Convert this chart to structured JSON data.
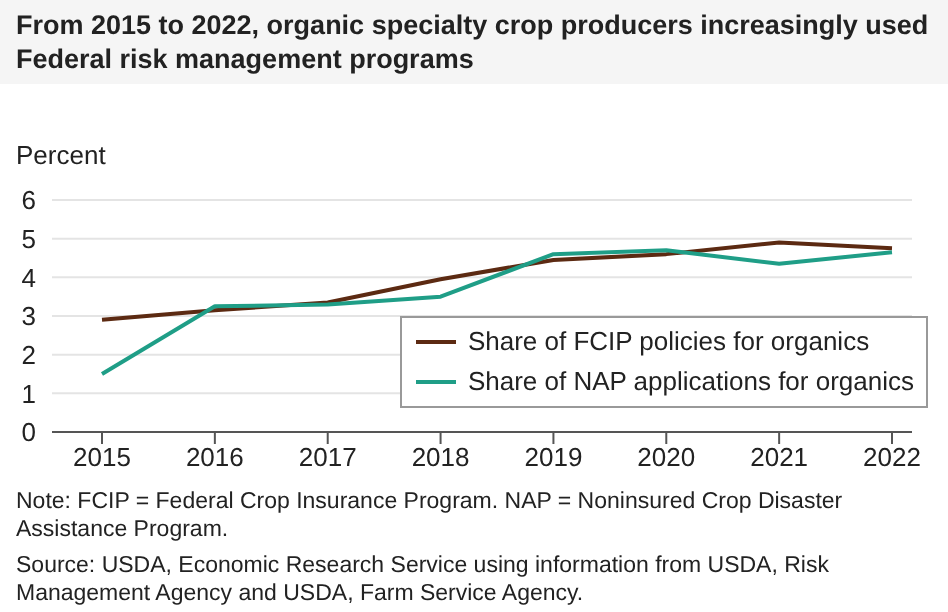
{
  "chart_data": {
    "type": "line",
    "title": "From 2015 to 2022, organic specialty crop producers increasingly used Federal risk management programs",
    "ylabel": "Percent",
    "categories": [
      "2015",
      "2016",
      "2017",
      "2018",
      "2019",
      "2020",
      "2021",
      "2022"
    ],
    "series": [
      {
        "name": "Share of FCIP policies for organics",
        "color": "#5c2a12",
        "values": [
          2.9,
          3.15,
          3.35,
          3.95,
          4.45,
          4.6,
          4.9,
          4.75
        ]
      },
      {
        "name": "Share of NAP applications for organics",
        "color": "#1f9e87",
        "values": [
          1.5,
          3.25,
          3.3,
          3.5,
          4.6,
          4.7,
          4.35,
          4.65
        ]
      }
    ],
    "ylim": [
      0,
      6
    ],
    "yticks": [
      0,
      1,
      2,
      3,
      4,
      5,
      6
    ],
    "grid": "y",
    "legend": "bottom right",
    "marker": "none",
    "line_style": "solid",
    "annotations": [
      "Note: FCIP = Federal Crop Insurance Program. NAP = Noninsured Crop Disaster Assistance Program.",
      "Source: USDA, Economic Research Service using information from USDA, Risk Management Agency and USDA, Farm Service Agency."
    ]
  }
}
